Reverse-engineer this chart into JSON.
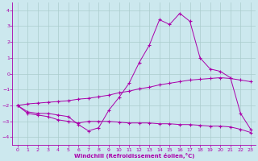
{
  "x": [
    0,
    1,
    2,
    3,
    4,
    5,
    6,
    7,
    8,
    9,
    10,
    11,
    12,
    13,
    14,
    15,
    16,
    17,
    18,
    19,
    20,
    21,
    22,
    23
  ],
  "line1": [
    -2.0,
    -2.4,
    -2.5,
    -2.5,
    -2.6,
    -2.7,
    -3.2,
    -3.6,
    -3.4,
    -2.3,
    -1.5,
    -0.6,
    0.7,
    1.8,
    3.4,
    3.1,
    3.8,
    3.3,
    1.0,
    0.3,
    0.15,
    -0.25,
    -2.5,
    -3.5
  ],
  "line2": [
    -2.0,
    -1.9,
    -1.85,
    -1.8,
    -1.75,
    -1.7,
    -1.6,
    -1.55,
    -1.45,
    -1.35,
    -1.2,
    -1.1,
    -0.95,
    -0.85,
    -0.7,
    -0.6,
    -0.5,
    -0.4,
    -0.35,
    -0.3,
    -0.25,
    -0.3,
    -0.4,
    -0.5
  ],
  "line3": [
    -2.0,
    -2.5,
    -2.6,
    -2.7,
    -2.9,
    -3.0,
    -3.1,
    -3.0,
    -3.0,
    -3.0,
    -3.05,
    -3.1,
    -3.1,
    -3.1,
    -3.15,
    -3.15,
    -3.2,
    -3.2,
    -3.25,
    -3.3,
    -3.3,
    -3.35,
    -3.5,
    -3.7
  ],
  "bg_color": "#cce8ee",
  "grid_color": "#aacccc",
  "line_color": "#aa00aa",
  "xlabel": "Windchill (Refroidissement éolien,°C)",
  "ylim": [
    -4.5,
    4.5
  ],
  "xlim": [
    -0.5,
    23.5
  ],
  "yticks": [
    -4,
    -3,
    -2,
    -1,
    0,
    1,
    2,
    3,
    4
  ],
  "xticks": [
    0,
    1,
    2,
    3,
    4,
    5,
    6,
    7,
    8,
    9,
    10,
    11,
    12,
    13,
    14,
    15,
    16,
    17,
    18,
    19,
    20,
    21,
    22,
    23
  ]
}
